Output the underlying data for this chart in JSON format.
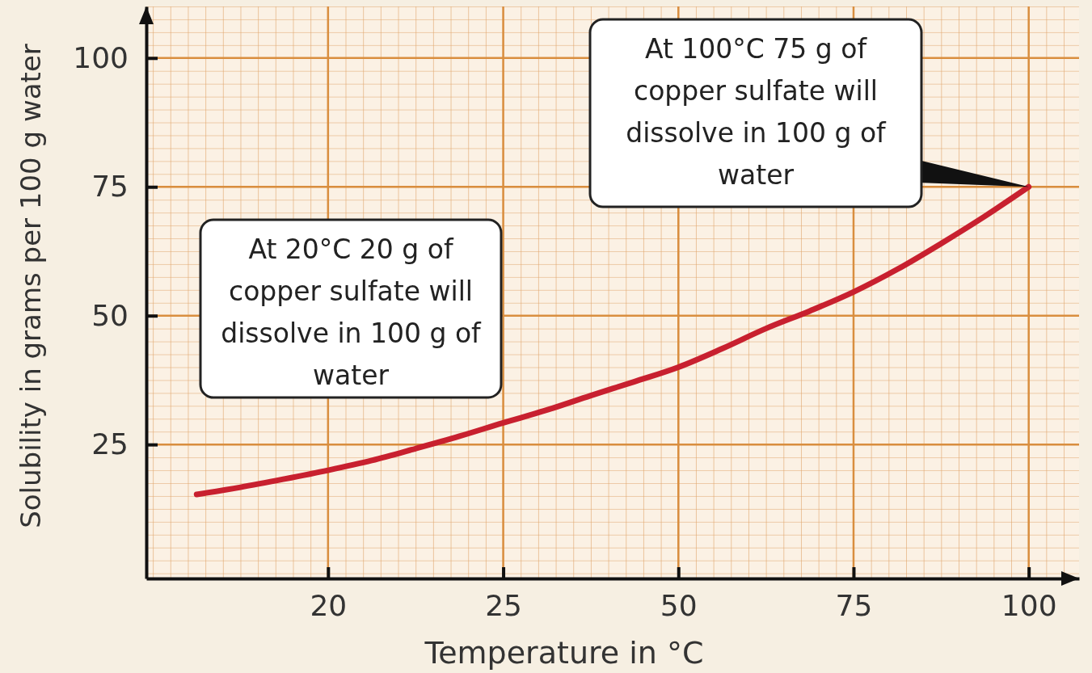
{
  "chart_data": {
    "type": "line",
    "xlabel": "Temperature in °C",
    "ylabel": "Solubility in grams per 100 g water",
    "categories": [
      null,
      null,
      null,
      "20",
      null,
      null,
      null,
      "25",
      null,
      null,
      null,
      "50",
      null,
      null,
      null,
      "75",
      null,
      null,
      null,
      "100"
    ],
    "series": [
      {
        "color": "#c8202f",
        "values": [
          15.3,
          16.7,
          18.3,
          20,
          21.9,
          24.2,
          26.6,
          29.2,
          31.7,
          34.5,
          37.2,
          40,
          43.6,
          47.5,
          50.9,
          54.6,
          59,
          64,
          69.3,
          75
        ]
      }
    ],
    "ylim": [
      -1,
      110
    ],
    "yticks": [
      25,
      50,
      75,
      100
    ],
    "grid": true,
    "marker": "none",
    "line_style": "solid",
    "annotations": [
      "At 20°C 20 g of copper sulfate will dissolve in 100 g of water",
      {
        "text": "At 100°C 75 g of copper sulfate will dissolve in 100 g of water",
        "x": "100",
        "y": 75
      }
    ]
  }
}
